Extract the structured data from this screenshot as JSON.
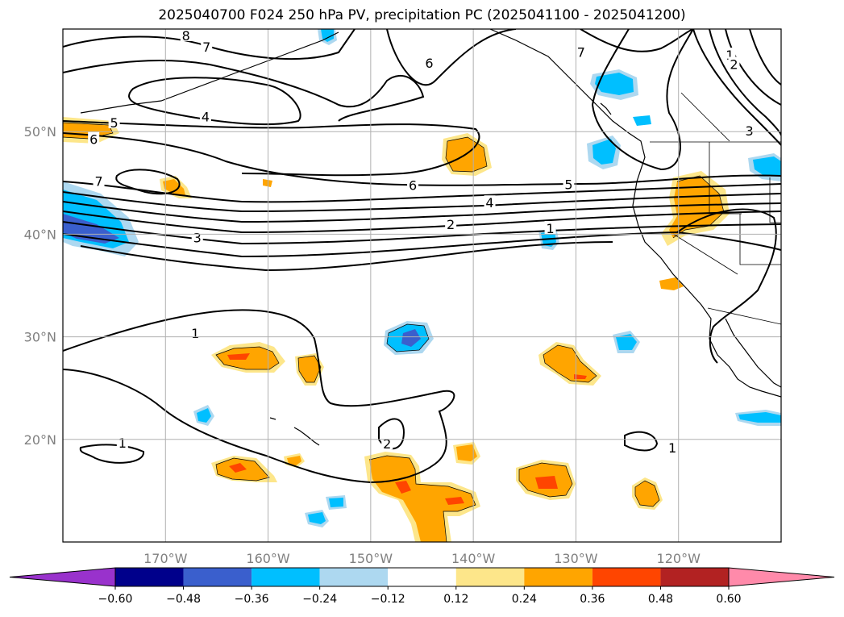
{
  "title": "2025040700 F024 250 hPa PV, precipitation PC (2025041100 - 2025041200)",
  "map": {
    "lon_range": [
      -180,
      -110
    ],
    "lat_range": [
      10,
      60
    ],
    "lat_labels": [
      {
        "lat": 50,
        "text": "50°N"
      },
      {
        "lat": 40,
        "text": "40°N"
      },
      {
        "lat": 30,
        "text": "30°N"
      },
      {
        "lat": 20,
        "text": "20°N"
      }
    ],
    "lon_labels": [
      {
        "lon": -170,
        "text": "170°W"
      },
      {
        "lon": -160,
        "text": "160°W"
      },
      {
        "lon": -150,
        "text": "150°W"
      },
      {
        "lon": -140,
        "text": "140°W"
      },
      {
        "lon": -130,
        "text": "130°W"
      },
      {
        "lon": -120,
        "text": "120°W"
      }
    ],
    "contour_labels": [
      {
        "text": "8",
        "lon": -168.0,
        "lat": 59.3
      },
      {
        "text": "7",
        "lon": -166.0,
        "lat": 58.2
      },
      {
        "text": "6",
        "lon": -144.3,
        "lat": 56.6
      },
      {
        "text": "7",
        "lon": -129.5,
        "lat": 57.7
      },
      {
        "text": "1",
        "lon": -115.0,
        "lat": 57.4
      },
      {
        "text": "2",
        "lon": -114.6,
        "lat": 56.5
      },
      {
        "text": "3",
        "lon": -113.1,
        "lat": 50.0
      },
      {
        "text": "4",
        "lon": -166.1,
        "lat": 51.4
      },
      {
        "text": "5",
        "lon": -175.0,
        "lat": 50.8
      },
      {
        "text": "6",
        "lon": -177.0,
        "lat": 49.2
      },
      {
        "text": "7",
        "lon": -176.5,
        "lat": 45.1
      },
      {
        "text": "6",
        "lon": -145.9,
        "lat": 44.7
      },
      {
        "text": "5",
        "lon": -130.7,
        "lat": 44.8
      },
      {
        "text": "4",
        "lon": -138.4,
        "lat": 43.0
      },
      {
        "text": "2",
        "lon": -142.2,
        "lat": 40.9
      },
      {
        "text": "3",
        "lon": -166.9,
        "lat": 39.6
      },
      {
        "text": "1",
        "lon": -132.5,
        "lat": 40.5
      },
      {
        "text": "1",
        "lon": -167.1,
        "lat": 30.3
      },
      {
        "text": "1",
        "lon": -174.2,
        "lat": 19.6
      },
      {
        "text": "2",
        "lon": -148.4,
        "lat": 19.5
      },
      {
        "text": "1",
        "lon": -120.6,
        "lat": 19.1
      }
    ]
  },
  "colorbar": {
    "ticks": [
      "−0.60",
      "−0.48",
      "−0.36",
      "−0.24",
      "−0.12",
      "0.12",
      "0.24",
      "0.36",
      "0.48",
      "0.60"
    ],
    "colors": [
      "#9932cc",
      "#00008b",
      "#3a5fcd",
      "#00bfff",
      "#add8f0",
      "#ffffff",
      "#fde68a",
      "#ffa500",
      "#ff4500",
      "#b22222",
      "#ff8aaa"
    ]
  }
}
